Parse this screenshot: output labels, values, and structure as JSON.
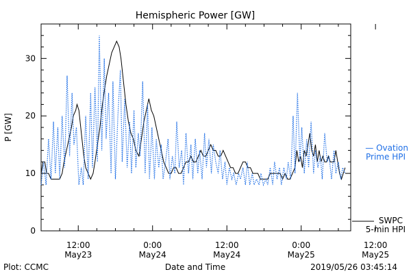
{
  "chart_data": {
    "type": "line",
    "title": "Hemispheric Power [GW]",
    "xlabel": "Date and Time",
    "ylabel": "P [GW]",
    "ylim": [
      0,
      36
    ],
    "xlim_hours": [
      -18,
      32
    ],
    "yticks": [
      0,
      10,
      20,
      30
    ],
    "xticks": [
      {
        "h": -12,
        "time": "12:00",
        "date": "May23"
      },
      {
        "h": 0,
        "time": "0:00",
        "date": "May24"
      },
      {
        "h": 12,
        "time": "12:00",
        "date": "May24"
      },
      {
        "h": 24,
        "time": "0:00",
        "date": "May25"
      },
      {
        "h": 36,
        "time": "12:00",
        "date": "May25"
      },
      {
        "h": 48,
        "time": "0:00",
        "date": "May26"
      }
    ],
    "grid": false,
    "series": [
      {
        "name": "SWPC 5-min HPI",
        "style": "solid",
        "color": "#000000",
        "points": [
          [
            0,
            10
          ],
          [
            0.3,
            12
          ],
          [
            0.6,
            12
          ],
          [
            0.9,
            10
          ],
          [
            1.2,
            10
          ],
          [
            1.6,
            9
          ],
          [
            2,
            9
          ],
          [
            2.6,
            9
          ],
          [
            3,
            9
          ],
          [
            3.4,
            10
          ],
          [
            3.7,
            12
          ],
          [
            4.1,
            14
          ],
          [
            4.5,
            16
          ],
          [
            4.9,
            18
          ],
          [
            5.2,
            20
          ],
          [
            5.6,
            21
          ],
          [
            5.8,
            22
          ],
          [
            6.1,
            21
          ],
          [
            6.3,
            19
          ],
          [
            6.6,
            16
          ],
          [
            6.9,
            13
          ],
          [
            7.2,
            11
          ],
          [
            7.6,
            10
          ],
          [
            8,
            9
          ],
          [
            8.4,
            10
          ],
          [
            8.7,
            12
          ],
          [
            9.1,
            15
          ],
          [
            9.5,
            18
          ],
          [
            9.9,
            22
          ],
          [
            10.3,
            25
          ],
          [
            10.6,
            27
          ],
          [
            11,
            29
          ],
          [
            11.4,
            31
          ],
          [
            11.8,
            32
          ],
          [
            12.2,
            33
          ],
          [
            12.6,
            32
          ],
          [
            12.9,
            30
          ],
          [
            13.3,
            26
          ],
          [
            13.7,
            22
          ],
          [
            14.1,
            19
          ],
          [
            14.5,
            17
          ],
          [
            14.9,
            16
          ],
          [
            15.3,
            14
          ],
          [
            15.8,
            13
          ],
          [
            16.2,
            16
          ],
          [
            16.6,
            19
          ],
          [
            17,
            21
          ],
          [
            17.4,
            23
          ],
          [
            17.8,
            21
          ],
          [
            18.2,
            20
          ],
          [
            18.6,
            18
          ],
          [
            19,
            16
          ],
          [
            19.4,
            14
          ],
          [
            19.8,
            12
          ],
          [
            20.2,
            11
          ],
          [
            20.6,
            10
          ],
          [
            21,
            10
          ],
          [
            21.4,
            11
          ],
          [
            21.8,
            11
          ],
          [
            22.2,
            10
          ],
          [
            22.6,
            10
          ],
          [
            23,
            11
          ],
          [
            23.4,
            12
          ],
          [
            23.8,
            12
          ],
          [
            24.2,
            13
          ],
          [
            24.6,
            12
          ],
          [
            25,
            12
          ],
          [
            25.4,
            13
          ],
          [
            25.8,
            14
          ],
          [
            26.2,
            13
          ],
          [
            26.6,
            13
          ],
          [
            27,
            14
          ],
          [
            27.4,
            15
          ],
          [
            27.8,
            14
          ],
          [
            28.2,
            14
          ],
          [
            28.6,
            13
          ],
          [
            29,
            13
          ],
          [
            29.4,
            14
          ],
          [
            29.8,
            13
          ],
          [
            30.2,
            12
          ],
          [
            30.6,
            11
          ],
          [
            31,
            11
          ],
          [
            31.4,
            10
          ],
          [
            31.8,
            10
          ],
          [
            32.2,
            11
          ],
          [
            32.6,
            12
          ],
          [
            33,
            12
          ],
          [
            33.4,
            11
          ],
          [
            33.8,
            11
          ],
          [
            34.2,
            10
          ],
          [
            34.6,
            10
          ],
          [
            35,
            10
          ],
          [
            35.4,
            9
          ],
          [
            35.8,
            9
          ],
          [
            36.2,
            9
          ],
          [
            36.6,
            9
          ],
          [
            37,
            10
          ],
          [
            37.4,
            10
          ],
          [
            37.8,
            10
          ],
          [
            38.2,
            10
          ],
          [
            38.6,
            10
          ],
          [
            39,
            9
          ],
          [
            39.4,
            10
          ],
          [
            39.8,
            9
          ],
          [
            40.2,
            9
          ],
          [
            40.6,
            10
          ],
          [
            41,
            11
          ],
          [
            41.3,
            14
          ],
          [
            41.6,
            12
          ],
          [
            41.9,
            13
          ],
          [
            42.2,
            11
          ],
          [
            42.5,
            14
          ],
          [
            42.8,
            13
          ],
          [
            43.1,
            15
          ],
          [
            43.4,
            17
          ],
          [
            43.7,
            14
          ],
          [
            44,
            13
          ],
          [
            44.3,
            15
          ],
          [
            44.6,
            12
          ],
          [
            44.9,
            14
          ],
          [
            45.2,
            12
          ],
          [
            45.5,
            13
          ],
          [
            45.8,
            12
          ],
          [
            46.1,
            12
          ],
          [
            46.4,
            13
          ],
          [
            46.7,
            12
          ],
          [
            47,
            12
          ],
          [
            47.3,
            12
          ],
          [
            47.6,
            14
          ],
          [
            47.9,
            12
          ],
          [
            48.2,
            10
          ],
          [
            48.5,
            9
          ],
          [
            48.8,
            10
          ],
          [
            49.1,
            11
          ]
        ]
      },
      {
        "name": "Ovation Prime HPI",
        "style": "dotted",
        "color": "#1f6fe6",
        "points": [
          [
            0,
            8
          ],
          [
            0.4,
            12
          ],
          [
            0.8,
            8
          ],
          [
            1.2,
            16
          ],
          [
            1.6,
            9
          ],
          [
            2,
            19
          ],
          [
            2.3,
            10
          ],
          [
            2.7,
            18
          ],
          [
            3,
            9
          ],
          [
            3.4,
            20
          ],
          [
            3.8,
            11
          ],
          [
            4.2,
            27
          ],
          [
            4.6,
            13
          ],
          [
            5,
            24
          ],
          [
            5.3,
            15
          ],
          [
            5.7,
            18
          ],
          [
            6.1,
            8
          ],
          [
            6.5,
            11
          ],
          [
            6.8,
            8
          ],
          [
            7.2,
            20
          ],
          [
            7.6,
            9
          ],
          [
            8,
            24
          ],
          [
            8.3,
            11
          ],
          [
            8.7,
            25
          ],
          [
            9.1,
            12
          ],
          [
            9.4,
            34
          ],
          [
            9.8,
            14
          ],
          [
            10.2,
            30
          ],
          [
            10.5,
            16
          ],
          [
            10.9,
            24
          ],
          [
            11.3,
            10
          ],
          [
            11.6,
            26
          ],
          [
            12,
            9
          ],
          [
            12.4,
            20
          ],
          [
            12.8,
            28
          ],
          [
            13.1,
            12
          ],
          [
            13.5,
            23
          ],
          [
            13.9,
            11
          ],
          [
            14.3,
            19
          ],
          [
            14.6,
            10
          ],
          [
            15,
            21
          ],
          [
            15.3,
            11
          ],
          [
            15.7,
            17
          ],
          [
            16,
            13
          ],
          [
            16.4,
            26
          ],
          [
            16.8,
            10
          ],
          [
            17.2,
            22
          ],
          [
            17.5,
            9
          ],
          [
            17.9,
            18
          ],
          [
            18.3,
            9
          ],
          [
            18.6,
            16
          ],
          [
            19,
            11
          ],
          [
            19.4,
            15
          ],
          [
            19.7,
            9
          ],
          [
            20.1,
            12
          ],
          [
            20.5,
            16
          ],
          [
            20.8,
            9
          ],
          [
            21.2,
            13
          ],
          [
            21.6,
            10
          ],
          [
            21.9,
            19
          ],
          [
            22.3,
            11
          ],
          [
            22.7,
            14
          ],
          [
            23,
            8
          ],
          [
            23.4,
            17
          ],
          [
            23.8,
            10
          ],
          [
            24.2,
            15
          ],
          [
            24.5,
            9
          ],
          [
            24.9,
            16
          ],
          [
            25.3,
            10
          ],
          [
            25.6,
            14
          ],
          [
            26,
            9
          ],
          [
            26.4,
            17
          ],
          [
            26.7,
            11
          ],
          [
            27.1,
            16
          ],
          [
            27.5,
            10
          ],
          [
            27.8,
            15
          ],
          [
            28.2,
            12
          ],
          [
            28.6,
            10
          ],
          [
            28.9,
            14
          ],
          [
            29.3,
            9
          ],
          [
            29.7,
            12
          ],
          [
            30,
            8
          ],
          [
            30.4,
            11
          ],
          [
            30.8,
            9
          ],
          [
            31.1,
            10
          ],
          [
            31.5,
            8
          ],
          [
            31.9,
            10
          ],
          [
            32.2,
            9
          ],
          [
            32.6,
            11
          ],
          [
            33,
            8
          ],
          [
            33.3,
            12
          ],
          [
            33.7,
            8
          ],
          [
            34.1,
            10
          ],
          [
            34.4,
            8
          ],
          [
            34.8,
            9
          ],
          [
            35.2,
            8
          ],
          [
            35.5,
            10
          ],
          [
            35.9,
            8
          ],
          [
            36.3,
            9
          ],
          [
            36.6,
            8
          ],
          [
            37,
            11
          ],
          [
            37.4,
            8
          ],
          [
            37.7,
            12
          ],
          [
            38.1,
            9
          ],
          [
            38.5,
            11
          ],
          [
            38.8,
            8
          ],
          [
            39.2,
            11
          ],
          [
            39.6,
            9
          ],
          [
            39.9,
            12
          ],
          [
            40.3,
            9
          ],
          [
            40.7,
            20
          ],
          [
            41,
            10
          ],
          [
            41.4,
            24
          ],
          [
            41.8,
            12
          ],
          [
            42.1,
            18
          ],
          [
            42.5,
            10
          ],
          [
            42.9,
            16
          ],
          [
            43.2,
            11
          ],
          [
            43.6,
            19
          ],
          [
            44,
            10
          ],
          [
            44.3,
            14
          ],
          [
            44.7,
            11
          ],
          [
            45.1,
            13
          ],
          [
            45.4,
            9
          ],
          [
            45.8,
            17
          ],
          [
            46.2,
            12
          ],
          [
            46.5,
            13
          ],
          [
            46.9,
            9
          ],
          [
            47.3,
            14
          ],
          [
            47.6,
            10
          ],
          [
            48,
            12
          ],
          [
            48.4,
            9
          ],
          [
            48.7,
            11
          ],
          [
            49.1,
            10
          ]
        ]
      }
    ]
  },
  "legend": {
    "ovation_line1": "— Ovation",
    "ovation_line2": "Prime HPI",
    "swpc_line1": "SWPC",
    "swpc_line2": "5-min HPI"
  },
  "footer": {
    "plot_credit": "Plot: CCMC",
    "xlabel": "Date and Time",
    "timestamp": "2019/05/26 03:45:14"
  }
}
